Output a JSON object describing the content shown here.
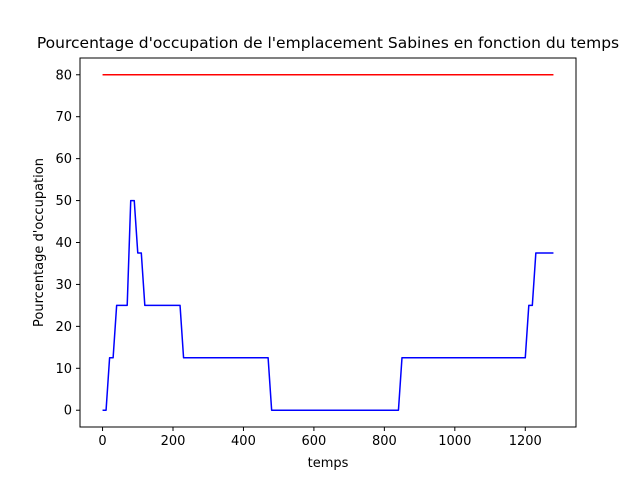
{
  "chart_data": {
    "type": "line",
    "title": "Pourcentage d'occupation de l'emplacement Sabines en fonction du temps",
    "xlabel": "temps",
    "ylabel": "Pourcentage d'occupation",
    "xlim": [
      -64,
      1344
    ],
    "ylim": [
      -4,
      84
    ],
    "xticks": [
      0,
      200,
      400,
      600,
      800,
      1000,
      1200
    ],
    "yticks": [
      0,
      10,
      20,
      30,
      40,
      50,
      60,
      70,
      80
    ],
    "xtick_labels": [
      "0",
      "200",
      "400",
      "600",
      "800",
      "1000",
      "1200"
    ],
    "ytick_labels": [
      "0",
      "10",
      "20",
      "30",
      "40",
      "50",
      "60",
      "70",
      "80"
    ],
    "grid": false,
    "legend": "none",
    "series": [
      {
        "color": "#ff0000",
        "x": [
          0,
          1280
        ],
        "y": [
          80,
          80
        ]
      },
      {
        "color": "#0000ff",
        "x": [
          0,
          10,
          20,
          30,
          40,
          50,
          60,
          70,
          80,
          90,
          100,
          110,
          120,
          130,
          140,
          150,
          160,
          170,
          180,
          190,
          200,
          210,
          220,
          230,
          240,
          250,
          470,
          480,
          490,
          830,
          840,
          850,
          860,
          1190,
          1200,
          1210,
          1220,
          1230,
          1240,
          1250,
          1260,
          1270,
          1280
        ],
        "y": [
          0,
          0,
          12.5,
          12.5,
          25,
          25,
          25,
          25,
          50,
          50,
          37.5,
          37.5,
          25,
          25,
          25,
          25,
          25,
          25,
          25,
          25,
          25,
          25,
          25,
          12.5,
          12.5,
          12.5,
          12.5,
          0,
          0,
          0,
          0,
          12.5,
          12.5,
          12.5,
          12.5,
          25,
          25,
          37.5,
          37.5,
          37.5,
          37.5,
          37.5,
          37.5
        ]
      }
    ]
  }
}
